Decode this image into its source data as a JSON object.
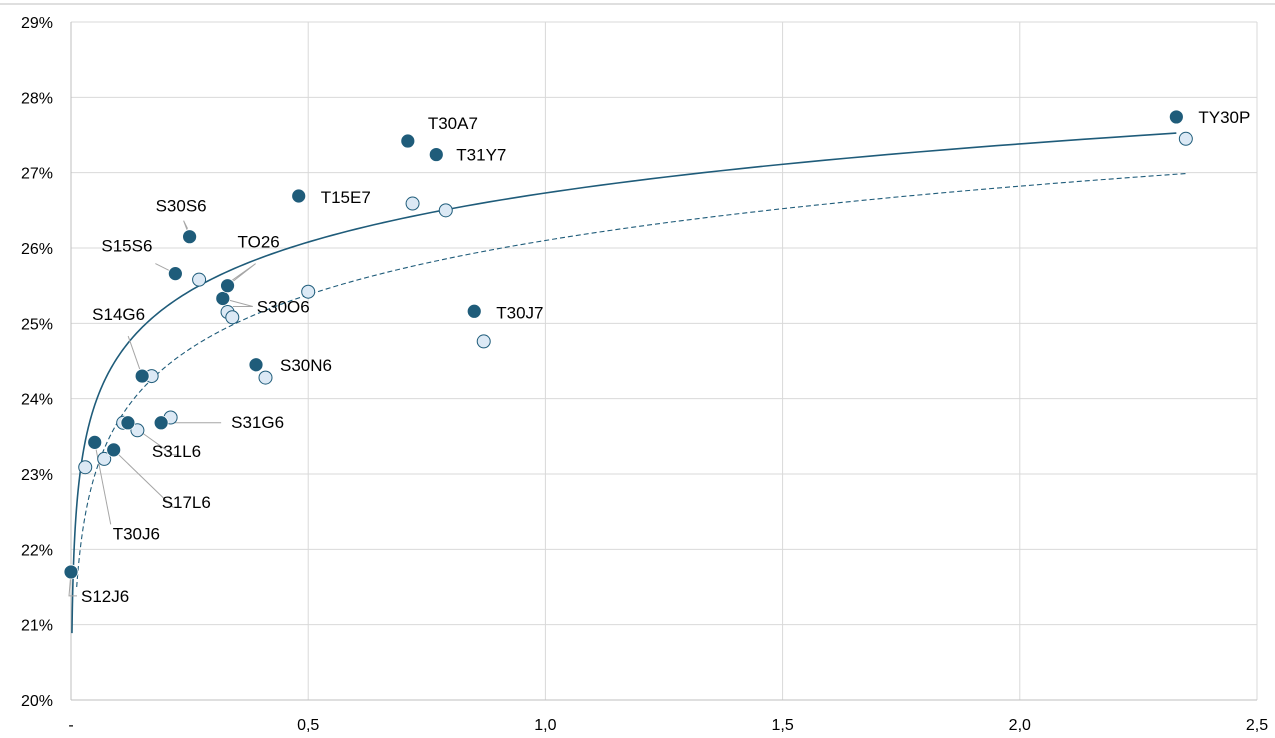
{
  "chart_data": {
    "type": "scatter",
    "xlim": [
      0,
      2.5
    ],
    "ylim": [
      20,
      29
    ],
    "x_ticks": [
      0,
      0.5,
      1.0,
      1.5,
      2.0,
      2.5
    ],
    "x_tick_labels": [
      "-",
      "0,5",
      "1,0",
      "1,5",
      "2,0",
      "2,5"
    ],
    "y_ticks": [
      20,
      21,
      22,
      23,
      24,
      25,
      26,
      27,
      28,
      29
    ],
    "y_tick_labels": [
      "20%",
      "21%",
      "22%",
      "23%",
      "24%",
      "25%",
      "26%",
      "27%",
      "28%",
      "29%"
    ],
    "grid": true,
    "legend": "none",
    "colors": {
      "series_a": "#1f5c7a",
      "series_b_fill": "#dce9f5",
      "series_b_stroke": "#1f5c7a"
    },
    "series": [
      {
        "marker": "filled",
        "points": [
          {
            "x": 0.0,
            "y": 21.7,
            "label": "S12J6"
          },
          {
            "x": 0.05,
            "y": 23.42,
            "label": "T30J6"
          },
          {
            "x": 0.09,
            "y": 23.32,
            "label": "S17L6"
          },
          {
            "x": 0.12,
            "y": 23.68,
            "label": "S31L6"
          },
          {
            "x": 0.15,
            "y": 24.3,
            "label": "S14G6"
          },
          {
            "x": 0.19,
            "y": 23.68,
            "label": "S31G6"
          },
          {
            "x": 0.22,
            "y": 25.66,
            "label": "S15S6"
          },
          {
            "x": 0.25,
            "y": 26.15,
            "label": "S30S6"
          },
          {
            "x": 0.32,
            "y": 25.33,
            "label": "S30O6"
          },
          {
            "x": 0.33,
            "y": 25.5,
            "label": "TO26"
          },
          {
            "x": 0.39,
            "y": 24.45,
            "label": "S30N6"
          },
          {
            "x": 0.48,
            "y": 26.69,
            "label": "T15E7"
          },
          {
            "x": 0.71,
            "y": 27.42,
            "label": "T30A7"
          },
          {
            "x": 0.77,
            "y": 27.24,
            "label": "T31Y7"
          },
          {
            "x": 0.85,
            "y": 25.16,
            "label": "T30J7"
          },
          {
            "x": 2.33,
            "y": 27.74,
            "label": "TY30P"
          }
        ]
      },
      {
        "marker": "open",
        "points": [
          {
            "x": 0.03,
            "y": 23.09
          },
          {
            "x": 0.07,
            "y": 23.2
          },
          {
            "x": 0.11,
            "y": 23.68
          },
          {
            "x": 0.14,
            "y": 23.58
          },
          {
            "x": 0.17,
            "y": 24.3
          },
          {
            "x": 0.21,
            "y": 23.75
          },
          {
            "x": 0.27,
            "y": 25.58
          },
          {
            "x": 0.33,
            "y": 25.15
          },
          {
            "x": 0.34,
            "y": 25.08
          },
          {
            "x": 0.41,
            "y": 24.28
          },
          {
            "x": 0.5,
            "y": 25.42
          },
          {
            "x": 0.72,
            "y": 26.59
          },
          {
            "x": 0.79,
            "y": 26.5
          },
          {
            "x": 0.87,
            "y": 24.76
          },
          {
            "x": 2.35,
            "y": 27.45
          }
        ]
      }
    ],
    "trendlines": [
      {
        "style": "solid",
        "form": "log",
        "a": 26.73,
        "b": 0.94,
        "x_range": [
          0.002,
          2.33
        ]
      },
      {
        "style": "dashed",
        "form": "log",
        "a": 26.1,
        "b": 1.04,
        "x_range": [
          0.012,
          2.35
        ]
      }
    ]
  }
}
